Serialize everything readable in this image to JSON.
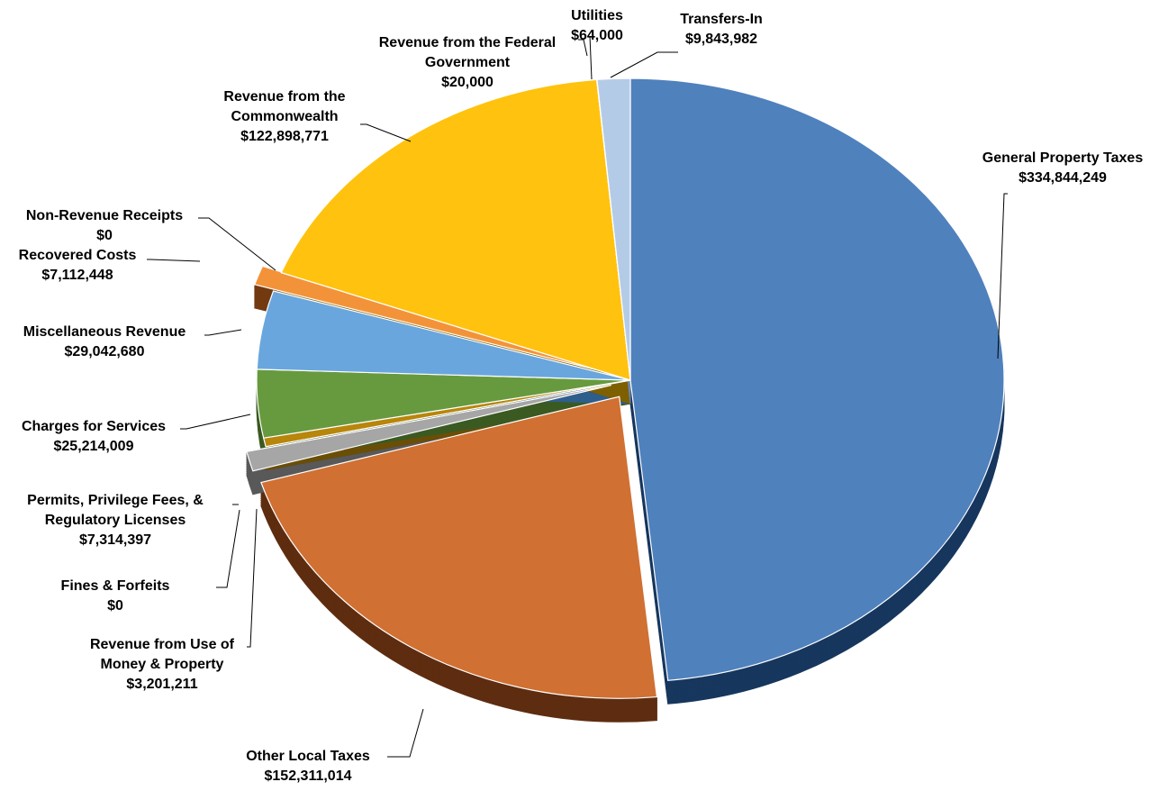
{
  "chart_data": {
    "type": "pie",
    "title": "",
    "series": [
      {
        "name": "",
        "slices": [
          {
            "label": "General Property Taxes",
            "value": 334844249,
            "value_label": "$334,844,249",
            "color": "#4F81BD",
            "side": "#17375E",
            "exploded": false
          },
          {
            "label": "Other Local Taxes",
            "value": 152311014,
            "value_label": "$152,311,014",
            "color": "#D07033",
            "side": "#5E2D10",
            "exploded": true
          },
          {
            "label": "Permits, Privilege Fees, & Regulatory Licenses",
            "value": 7314397,
            "value_label": "$7,314,397",
            "color": "#A6A6A6",
            "side": "#595959",
            "exploded": true
          },
          {
            "label": "Fines & Forfeits",
            "value": 0,
            "value_label": "$0",
            "color": "#4472C4",
            "side": "#1F3864",
            "exploded": false
          },
          {
            "label": "Revenue from Use of Money & Property",
            "value": 3201211,
            "value_label": "$3,201,211",
            "color": "#B8860B",
            "side": "#6B4E07",
            "exploded": false
          },
          {
            "label": "Charges for Services",
            "value": 25214009,
            "value_label": "$25,214,009",
            "color": "#679A3E",
            "side": "#3B5A22",
            "exploded": false
          },
          {
            "label": "Miscellaneous Revenue",
            "value": 29042680,
            "value_label": "$29,042,680",
            "color": "#6AA6DE",
            "side": "#2E5F8C",
            "exploded": false
          },
          {
            "label": "Recovered Costs",
            "value": 7112448,
            "value_label": "$7,112,448",
            "color": "#F39339",
            "side": "#733A11",
            "exploded": true
          },
          {
            "label": "Non-Revenue Receipts",
            "value": 0,
            "value_label": "$0",
            "color": "#7F7F7F",
            "side": "#404040",
            "exploded": false
          },
          {
            "label": "Revenue from the Commonwealth",
            "value": 122898771,
            "value_label": "$122,898,771",
            "color": "#FFC20E",
            "side": "#7F6000",
            "exploded": false
          },
          {
            "label": "Revenue from the Federal Government",
            "value": 20000,
            "value_label": "$20,000",
            "color": "#F2C14E",
            "side": "#7F6000",
            "exploded": false
          },
          {
            "label": "Utilities",
            "value": 64000,
            "value_label": "$64,000",
            "color": "#1F4E79",
            "side": "#0F2740",
            "exploded": false
          },
          {
            "label": "Transfers-In",
            "value": 9843982,
            "value_label": "$9,843,982",
            "color": "#B4CBE8",
            "side": "#6F88A8",
            "exploded": false
          }
        ]
      }
    ],
    "labels": [
      {
        "slice": 0,
        "lines": [
          "General Property Taxes",
          "$334,844,249"
        ]
      },
      {
        "slice": 1,
        "lines": [
          "Other Local Taxes",
          "$152,311,014"
        ]
      },
      {
        "slice": 2,
        "lines": [
          "Permits, Privilege Fees, &",
          "Regulatory Licenses",
          "$7,314,397"
        ]
      },
      {
        "slice": 3,
        "lines": [
          "Fines & Forfeits",
          "$0"
        ]
      },
      {
        "slice": 4,
        "lines": [
          "Revenue from Use of",
          "Money & Property",
          "$3,201,211"
        ]
      },
      {
        "slice": 5,
        "lines": [
          "Charges for Services",
          "$25,214,009"
        ]
      },
      {
        "slice": 6,
        "lines": [
          "Miscellaneous Revenue",
          "$29,042,680"
        ]
      },
      {
        "slice": 7,
        "lines": [
          "Recovered Costs",
          "$7,112,448"
        ]
      },
      {
        "slice": 8,
        "lines": [
          "Non-Revenue Receipts",
          "$0"
        ]
      },
      {
        "slice": 9,
        "lines": [
          "Revenue from the",
          "Commonwealth",
          "$122,898,771"
        ]
      },
      {
        "slice": 10,
        "lines": [
          "Revenue from the Federal",
          "Government",
          "$20,000"
        ]
      },
      {
        "slice": 11,
        "lines": [
          "Utilities",
          "$64,000"
        ]
      },
      {
        "slice": 12,
        "lines": [
          "Transfers-In",
          "$9,843,982"
        ]
      }
    ],
    "style": "3d-pie",
    "start": "top",
    "direction": "clockwise",
    "legend": "none"
  }
}
